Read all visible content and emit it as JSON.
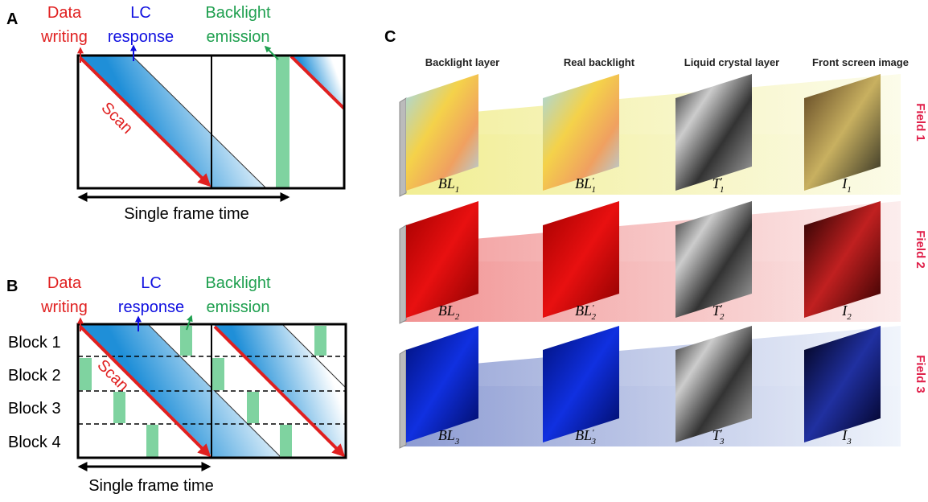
{
  "panel_a": {
    "label": "A",
    "data_writing": [
      "Data",
      "writing"
    ],
    "lc_response": [
      "LC",
      "response"
    ],
    "backlight_emission": [
      "Backlight",
      "emission"
    ],
    "scan": "Scan",
    "frame_time": "Single frame time"
  },
  "panel_b": {
    "label": "B",
    "data_writing": [
      "Data",
      "writing"
    ],
    "lc_response": [
      "LC",
      "response"
    ],
    "backlight_emission": [
      "Backlight",
      "emission"
    ],
    "scan": "Scan",
    "frame_time": "Single frame time",
    "blocks": [
      "Block 1",
      "Block 2",
      "Block 3",
      "Block 4"
    ]
  },
  "panel_c": {
    "label": "C",
    "columns": [
      "Backlight layer",
      "Real backlight",
      "Liquid crystal layer",
      "Front screen image"
    ],
    "fields": [
      {
        "name": "Field 1",
        "labels": [
          {
            "main": "BL",
            "sub": "1"
          },
          {
            "main": "BL",
            "prime": "'",
            "sub": "1"
          },
          {
            "main": "T",
            "prime": "'",
            "sub": "1"
          },
          {
            "main": "I",
            "sub": "1"
          }
        ]
      },
      {
        "name": "Field 2",
        "labels": [
          {
            "main": "BL",
            "sub": "2"
          },
          {
            "main": "BL",
            "prime": "'",
            "sub": "2"
          },
          {
            "main": "T",
            "prime": "'",
            "sub": "2"
          },
          {
            "main": "I",
            "sub": "2"
          }
        ]
      },
      {
        "name": "Field 3",
        "labels": [
          {
            "main": "BL",
            "sub": "3"
          },
          {
            "main": "BL",
            "prime": "'",
            "sub": "3"
          },
          {
            "main": "T",
            "prime": "'",
            "sub": "3"
          },
          {
            "main": "I",
            "sub": "3"
          }
        ]
      }
    ]
  }
}
